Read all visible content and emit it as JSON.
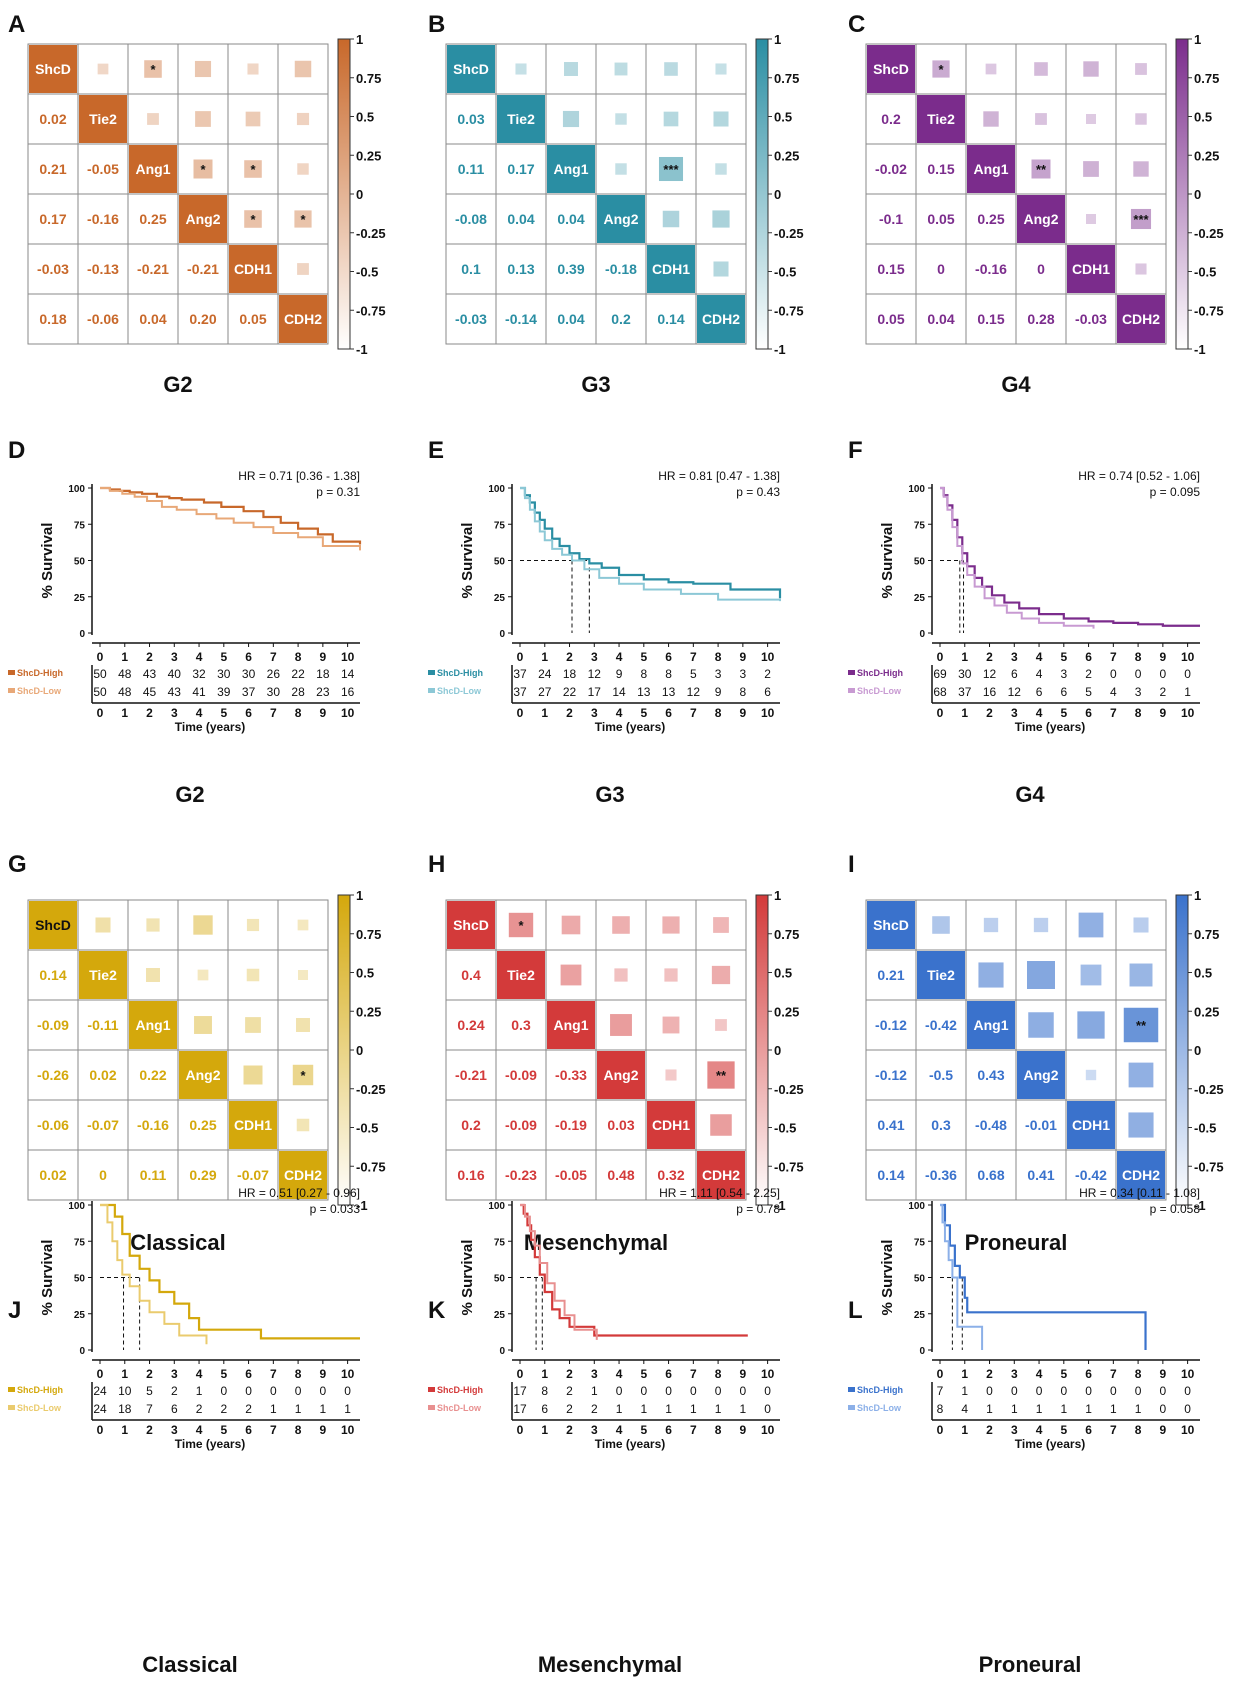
{
  "figure": {
    "genes": [
      "ShcD",
      "Tie2",
      "Ang1",
      "Ang2",
      "CDH1",
      "CDH2"
    ],
    "colorbar_ticks": [
      "1",
      "0.75",
      "0.5",
      "0.25",
      "0",
      "-0.25",
      "-0.5",
      "-0.75",
      "-1"
    ],
    "survival_ylabel": "% Survival",
    "survival_xlabel": "Time (years)",
    "survival_yticks": [
      0,
      25,
      50,
      75,
      100
    ],
    "survival_xticks": [
      0,
      1,
      2,
      3,
      4,
      5,
      6,
      7,
      8,
      9,
      10
    ]
  },
  "chart_data": [
    {
      "type": "heatmap",
      "panel": "A",
      "caption": "G2",
      "color": "#C8682A",
      "lower": [
        [
          0.02
        ],
        [
          0.21,
          -0.05
        ],
        [
          0.17,
          -0.16,
          0.25
        ],
        [
          -0.03,
          -0.13,
          -0.21,
          -0.21
        ],
        [
          0.18,
          -0.06,
          0.04,
          0.2,
          0.05
        ]
      ],
      "lower_labels": [
        [
          "0.02"
        ],
        [
          "0.21",
          "-0.05"
        ],
        [
          "0.17",
          "-0.16",
          "0.25"
        ],
        [
          "-0.03",
          "-0.13",
          "-0.21",
          "-0.21"
        ],
        [
          "0.18",
          "-0.06",
          "0.04",
          "0.20",
          "0.05"
        ]
      ],
      "sig": {
        "0-2": "*",
        "2-3": "*",
        "2-4": "*",
        "3-4": "*",
        "3-5": "*"
      }
    },
    {
      "type": "heatmap",
      "panel": "B",
      "caption": "G3",
      "color": "#2A8EA3",
      "lower": [
        [
          0.03
        ],
        [
          0.11,
          0.17
        ],
        [
          -0.08,
          0.04,
          0.04
        ],
        [
          0.1,
          0.13,
          0.39,
          -0.18
        ],
        [
          -0.03,
          -0.14,
          0.04,
          0.2,
          0.14
        ]
      ],
      "lower_labels": [
        [
          "0.03"
        ],
        [
          "0.11",
          "0.17"
        ],
        [
          "-0.08",
          "0.04",
          "0.04"
        ],
        [
          "0.1",
          "0.13",
          "0.39",
          "-0.18"
        ],
        [
          "-0.03",
          "-0.14",
          "0.04",
          "0.2",
          "0.14"
        ]
      ],
      "sig": {
        "2-4": "***"
      }
    },
    {
      "type": "heatmap",
      "panel": "C",
      "caption": "G4",
      "color": "#7B2C8C",
      "lower": [
        [
          0.2
        ],
        [
          -0.02,
          0.15
        ],
        [
          -0.1,
          0.05,
          0.25
        ],
        [
          0.15,
          0,
          -0.16,
          0
        ],
        [
          0.05,
          0.04,
          0.15,
          0.28,
          -0.03
        ]
      ],
      "lower_labels": [
        [
          "0.2"
        ],
        [
          "-0.02",
          "0.15"
        ],
        [
          "-0.1",
          "0.05",
          "0.25"
        ],
        [
          "0.15",
          "0",
          "-0.16",
          "0"
        ],
        [
          "0.05",
          "0.04",
          "0.15",
          "0.28",
          "-0.03"
        ]
      ],
      "sig": {
        "0-1": "*",
        "2-3": "**",
        "3-5": "***"
      }
    },
    {
      "type": "line",
      "panel": "D",
      "caption": "G2",
      "color": "#C8682A",
      "color_low": "#E8A878",
      "hr_text": "HR = 0.71 [0.36 - 1.38]",
      "p_text": "p = 0.31",
      "median": [],
      "series": [
        {
          "name": "ShcD-High",
          "x": [
            0,
            0.4,
            0.8,
            1.2,
            1.7,
            2.3,
            2.8,
            3.3,
            4.2,
            4.9,
            5.8,
            6.6,
            7.3,
            8.0,
            8.8,
            9.4,
            10.5
          ],
          "y": [
            100,
            99,
            98,
            97,
            96,
            94,
            93,
            92,
            90,
            87,
            84,
            80,
            76,
            72,
            68,
            63,
            61
          ]
        },
        {
          "name": "ShcD-Low",
          "x": [
            0,
            0.4,
            0.9,
            1.4,
            1.9,
            2.5,
            3.1,
            3.9,
            4.7,
            5.4,
            6.2,
            7.0,
            8.0,
            9.0,
            10.5
          ],
          "y": [
            100,
            98,
            96,
            94,
            91,
            87,
            85,
            82,
            79,
            76,
            73,
            69,
            66,
            60,
            57
          ]
        }
      ],
      "at_risk": {
        "high": [
          "50",
          "48",
          "43",
          "40",
          "32",
          "30",
          "30",
          "26",
          "22",
          "18",
          "14"
        ],
        "low": [
          "50",
          "48",
          "45",
          "43",
          "41",
          "39",
          "37",
          "30",
          "28",
          "23",
          "16"
        ]
      }
    },
    {
      "type": "line",
      "panel": "E",
      "caption": "G3",
      "color": "#2A8EA3",
      "color_low": "#8CC8D6",
      "hr_text": "HR = 0.81 [0.47 - 1.38]",
      "p_text": "p = 0.43",
      "median": [
        2.1,
        2.8
      ],
      "series": [
        {
          "name": "ShcD-High",
          "x": [
            0,
            0.2,
            0.4,
            0.6,
            0.8,
            1.0,
            1.3,
            1.6,
            2.0,
            2.4,
            2.8,
            3.3,
            4.0,
            5.0,
            6.0,
            7.0,
            8.5,
            10.5
          ],
          "y": [
            100,
            95,
            90,
            83,
            78,
            72,
            65,
            60,
            55,
            51,
            48,
            45,
            40,
            37,
            35,
            34,
            30,
            24
          ]
        },
        {
          "name": "ShcD-Low",
          "x": [
            0,
            0.2,
            0.4,
            0.6,
            0.8,
            1.0,
            1.3,
            1.7,
            2.1,
            2.6,
            3.2,
            4.0,
            5.0,
            6.5,
            8.0,
            10.5
          ],
          "y": [
            100,
            93,
            85,
            77,
            70,
            64,
            58,
            54,
            50,
            44,
            38,
            34,
            30,
            27,
            23,
            22
          ]
        }
      ],
      "at_risk": {
        "high": [
          "37",
          "24",
          "18",
          "12",
          "9",
          "8",
          "8",
          "5",
          "3",
          "3",
          "2"
        ],
        "low": [
          "37",
          "27",
          "22",
          "17",
          "14",
          "13",
          "13",
          "12",
          "9",
          "8",
          "6"
        ]
      }
    },
    {
      "type": "line",
      "panel": "F",
      "caption": "G4",
      "color": "#7B2C8C",
      "color_low": "#C89AD2",
      "hr_text": "HR = 0.74 [0.52 - 1.06]",
      "p_text": "p = 0.095",
      "median": [
        0.8,
        0.95
      ],
      "series": [
        {
          "name": "ShcD-High",
          "x": [
            0,
            0.15,
            0.3,
            0.5,
            0.7,
            0.9,
            1.1,
            1.4,
            1.7,
            2.1,
            2.6,
            3.2,
            4.0,
            5.0,
            6.0,
            7.0,
            8.0,
            9.0,
            10.5
          ],
          "y": [
            100,
            95,
            88,
            78,
            66,
            55,
            46,
            38,
            32,
            26,
            21,
            17,
            13,
            10,
            8,
            7,
            6,
            5,
            5
          ]
        },
        {
          "name": "ShcD-Low",
          "x": [
            0,
            0.15,
            0.3,
            0.5,
            0.7,
            0.9,
            1.1,
            1.4,
            1.8,
            2.2,
            2.7,
            3.3,
            4.0,
            5.0,
            6.2
          ],
          "y": [
            100,
            94,
            85,
            73,
            60,
            48,
            40,
            32,
            24,
            19,
            14,
            10,
            7,
            5,
            3
          ]
        }
      ],
      "at_risk": {
        "high": [
          "69",
          "30",
          "12",
          "6",
          "4",
          "3",
          "2",
          "0",
          "0",
          "0",
          "0"
        ],
        "low": [
          "68",
          "37",
          "16",
          "12",
          "6",
          "6",
          "5",
          "4",
          "3",
          "2",
          "1"
        ]
      }
    },
    {
      "type": "heatmap",
      "panel": "G",
      "caption": "Classical",
      "color": "#D4A80C",
      "lower": [
        [
          0.14
        ],
        [
          -0.09,
          -0.11
        ],
        [
          -0.26,
          0.02,
          0.22
        ],
        [
          -0.06,
          -0.07,
          -0.16,
          0.25
        ],
        [
          0.02,
          0,
          0.11,
          0.29,
          -0.07
        ]
      ],
      "lower_labels": [
        [
          "0.14"
        ],
        [
          "-0.09",
          "-0.11"
        ],
        [
          "-0.26",
          "0.02",
          "0.22"
        ],
        [
          "-0.06",
          "-0.07",
          "-0.16",
          "0.25"
        ],
        [
          "0.02",
          "0",
          "0.11",
          "0.29",
          "-0.07"
        ]
      ],
      "sig": {
        "3-5": "*"
      }
    },
    {
      "type": "heatmap",
      "panel": "H",
      "caption": "Mesenchymal",
      "color": "#D33A3A",
      "lower": [
        [
          0.4
        ],
        [
          0.24,
          0.3
        ],
        [
          -0.21,
          -0.09,
          -0.33
        ],
        [
          0.2,
          -0.09,
          -0.19,
          0.03
        ],
        [
          0.16,
          -0.23,
          -0.05,
          0.48,
          0.32
        ]
      ],
      "lower_labels": [
        [
          "0.4"
        ],
        [
          "0.24",
          "0.3"
        ],
        [
          "-0.21",
          "-0.09",
          "-0.33"
        ],
        [
          "0.2",
          "-0.09",
          "-0.19",
          "0.03"
        ],
        [
          "0.16",
          "-0.23",
          "-0.05",
          "0.48",
          "0.32"
        ]
      ],
      "sig": {
        "0-1": "*",
        "3-5": "**"
      }
    },
    {
      "type": "heatmap",
      "panel": "I",
      "caption": "Proneural",
      "color": "#3A72CC",
      "lower": [
        [
          0.21
        ],
        [
          -0.12,
          -0.42
        ],
        [
          -0.12,
          -0.5,
          0.43
        ],
        [
          0.41,
          0.3,
          -0.48,
          -0.01
        ],
        [
          0.14,
          -0.36,
          0.68,
          0.41,
          -0.42
        ]
      ],
      "lower_labels": [
        [
          "0.21"
        ],
        [
          "-0.12",
          "-0.42"
        ],
        [
          "-0.12",
          "-0.5",
          "0.43"
        ],
        [
          "0.41",
          "0.3",
          "-0.48",
          "-0.01"
        ],
        [
          "0.14",
          "-0.36",
          "0.68",
          "0.41",
          "-0.42"
        ]
      ],
      "sig": {
        "2-5": "**"
      }
    },
    {
      "type": "line",
      "panel": "J",
      "caption": "Classical",
      "color": "#D4A80C",
      "color_low": "#EACB6E",
      "hr_text": "HR = 0.51 [0.27 - 0.96]",
      "p_text": "p = 0.033",
      "median": [
        0.95,
        1.6
      ],
      "series": [
        {
          "name": "ShcD-High",
          "x": [
            0,
            0.6,
            0.9,
            1.2,
            1.6,
            2.0,
            2.4,
            3.0,
            3.6,
            4.0,
            6.5,
            10.5
          ],
          "y": [
            100,
            92,
            80,
            65,
            56,
            48,
            40,
            32,
            22,
            14,
            8,
            8
          ]
        },
        {
          "name": "ShcD-Low",
          "x": [
            0,
            0.3,
            0.5,
            0.7,
            0.9,
            1.2,
            1.6,
            2.0,
            2.6,
            3.2,
            4.3
          ],
          "y": [
            100,
            88,
            75,
            62,
            52,
            44,
            34,
            26,
            18,
            10,
            4
          ]
        }
      ],
      "at_risk": {
        "high": [
          "24",
          "10",
          "5",
          "2",
          "1",
          "0",
          "0",
          "0",
          "0",
          "0",
          "0"
        ],
        "low": [
          "24",
          "18",
          "7",
          "6",
          "2",
          "2",
          "2",
          "1",
          "1",
          "1",
          "1"
        ]
      }
    },
    {
      "type": "line",
      "panel": "K",
      "caption": "Mesenchymal",
      "color": "#D33A3A",
      "color_low": "#E89090",
      "hr_text": "HR = 1.11 [0.54 - 2.25]",
      "p_text": "p = 0.78",
      "median": [
        0.65,
        0.9
      ],
      "series": [
        {
          "name": "ShcD-High",
          "x": [
            0,
            0.15,
            0.3,
            0.45,
            0.6,
            0.8,
            1.0,
            1.3,
            1.6,
            2.0,
            3.0,
            9.2
          ],
          "y": [
            100,
            94,
            86,
            76,
            64,
            52,
            40,
            28,
            22,
            16,
            10,
            10
          ]
        },
        {
          "name": "ShcD-Low",
          "x": [
            0,
            0.2,
            0.4,
            0.6,
            0.8,
            1.1,
            1.4,
            1.8,
            2.2,
            3.1
          ],
          "y": [
            100,
            92,
            82,
            72,
            60,
            46,
            34,
            24,
            14,
            7
          ]
        }
      ],
      "at_risk": {
        "high": [
          "17",
          "8",
          "2",
          "1",
          "0",
          "0",
          "0",
          "0",
          "0",
          "0",
          "0"
        ],
        "low": [
          "17",
          "6",
          "2",
          "2",
          "1",
          "1",
          "1",
          "1",
          "1",
          "1",
          "0"
        ]
      }
    },
    {
      "type": "line",
      "panel": "L",
      "caption": "Proneural",
      "color": "#3A72CC",
      "color_low": "#8CB0E8",
      "hr_text": "HR = 0.34 [0.11 - 1.08]",
      "p_text": "p = 0.058",
      "median": [
        0.5,
        0.9
      ],
      "series": [
        {
          "name": "ShcD-High",
          "x": [
            0,
            0.2,
            0.4,
            0.6,
            0.8,
            1.0,
            1.1,
            8.3
          ],
          "y": [
            100,
            86,
            72,
            58,
            50,
            36,
            26,
            0
          ]
        },
        {
          "name": "ShcD-Low",
          "x": [
            0,
            0.1,
            0.2,
            0.35,
            0.5,
            0.7,
            1.7
          ],
          "y": [
            100,
            88,
            75,
            62,
            50,
            16,
            0
          ]
        }
      ],
      "at_risk": {
        "high": [
          "7",
          "1",
          "0",
          "0",
          "0",
          "0",
          "0",
          "0",
          "0",
          "0",
          "0"
        ],
        "low": [
          "8",
          "4",
          "1",
          "1",
          "1",
          "1",
          "1",
          "1",
          "1",
          "0",
          "0"
        ]
      }
    }
  ]
}
